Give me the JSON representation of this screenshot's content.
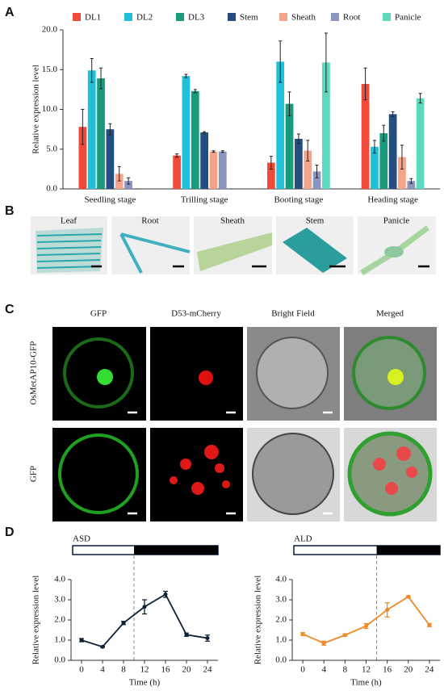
{
  "panel_labels": [
    "A",
    "B",
    "C",
    "D"
  ],
  "chart_data": [
    {
      "type": "bar",
      "y_label": "Relative expression level",
      "categories": [
        "Seedling stage",
        "Trilling stage",
        "Booting stage",
        "Heading stage"
      ],
      "ylim": [
        0,
        20
      ],
      "yticks": [
        {
          "value": 0,
          "label": "0.0"
        },
        {
          "value": 5,
          "label": "5.0"
        },
        {
          "value": 10,
          "label": "10.0"
        },
        {
          "value": 15,
          "label": "15.0"
        },
        {
          "value": 20,
          "label": "20.0"
        }
      ],
      "series": [
        {
          "name": "DL1",
          "color": "#f04a3a",
          "values": [
            7.8,
            4.2,
            3.3,
            13.2
          ],
          "errors": [
            2.2,
            0.2,
            0.8,
            2.0
          ]
        },
        {
          "name": "DL2",
          "color": "#1fc0d8",
          "values": [
            14.9,
            14.2,
            16.0,
            5.3
          ],
          "errors": [
            1.5,
            0.2,
            2.6,
            0.8
          ]
        },
        {
          "name": "DL3",
          "color": "#1a9a7c",
          "values": [
            13.9,
            12.3,
            10.7,
            7.0
          ],
          "errors": [
            1.3,
            0.2,
            1.5,
            1.0
          ]
        },
        {
          "name": "Stem",
          "color": "#264d80",
          "values": [
            7.5,
            7.1,
            6.3,
            9.4
          ],
          "errors": [
            0.7,
            0.1,
            0.6,
            0.3
          ]
        },
        {
          "name": "Sheath",
          "color": "#f4a48a",
          "values": [
            1.9,
            4.7,
            4.8,
            4.0
          ],
          "errors": [
            0.9,
            0.1,
            1.3,
            1.5
          ]
        },
        {
          "name": "Root",
          "color": "#8a96c0",
          "values": [
            1.0,
            4.7,
            2.2,
            1.0
          ],
          "errors": [
            0.4,
            0.1,
            0.8,
            0.3
          ]
        },
        {
          "name": "Panicle",
          "color": "#5ed8bf",
          "values": [
            0,
            0,
            15.9,
            11.4
          ],
          "errors": [
            0,
            0,
            3.7,
            0.6
          ]
        }
      ]
    },
    {
      "type": "line",
      "title": "ASD",
      "x_label": "Time (h)",
      "y_label": "Relative expression level",
      "color": "#0d2238",
      "x": [
        0,
        4,
        8,
        12,
        16,
        20,
        24
      ],
      "values": [
        1.0,
        0.67,
        1.85,
        2.65,
        3.27,
        1.27,
        1.1
      ],
      "errors": [
        0.08,
        0.03,
        0.08,
        0.35,
        0.15,
        0.08,
        0.15
      ],
      "night_start": 10,
      "xlim": [
        -2,
        26
      ],
      "xticks": [
        0,
        4,
        8,
        12,
        16,
        20,
        24
      ],
      "ylim": [
        0,
        4
      ],
      "yticks": [
        {
          "value": 0,
          "label": "0.0"
        },
        {
          "value": 1,
          "label": "1.0"
        },
        {
          "value": 2,
          "label": "2.0"
        },
        {
          "value": 3,
          "label": "3.0"
        },
        {
          "value": 4,
          "label": "4.0"
        }
      ]
    },
    {
      "type": "line",
      "title": "ALD",
      "x_label": "Time (h)",
      "y_label": "Relative expression level",
      "color": "#f08a24",
      "x": [
        0,
        4,
        8,
        12,
        16,
        20,
        24
      ],
      "values": [
        1.3,
        0.85,
        1.25,
        1.7,
        2.5,
        3.15,
        1.75
      ],
      "errors": [
        0.07,
        0.1,
        0.06,
        0.12,
        0.35,
        0.04,
        0.08
      ],
      "night_start": 14,
      "xlim": [
        -2,
        26
      ],
      "xticks": [
        0,
        4,
        8,
        12,
        16,
        20,
        24
      ],
      "ylim": [
        0,
        4
      ],
      "yticks": [
        {
          "value": 0,
          "label": "0.0"
        },
        {
          "value": 1,
          "label": "1.0"
        },
        {
          "value": 2,
          "label": "2.0"
        },
        {
          "value": 3,
          "label": "3.0"
        },
        {
          "value": 4,
          "label": "4.0"
        }
      ]
    }
  ],
  "tissue_images": {
    "labels": [
      "Leaf",
      "Root",
      "Sheath",
      "Stem",
      "Panicle"
    ]
  },
  "localization": {
    "columns": [
      "GFP",
      "D53-mCherry",
      "Bright Field",
      "Merged"
    ],
    "rows": [
      "OsMetAP10-GFP",
      "GFP"
    ]
  }
}
